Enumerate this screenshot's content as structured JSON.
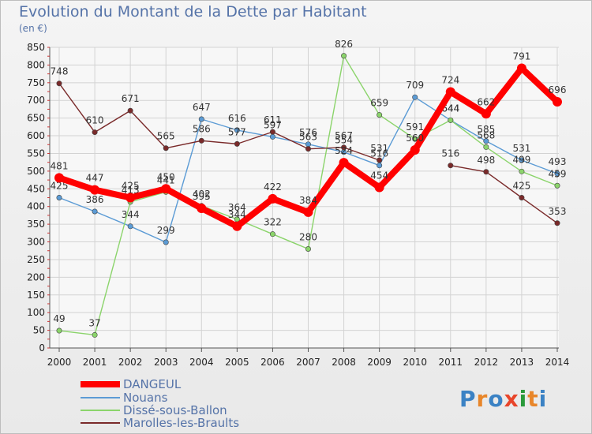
{
  "header": {
    "title": "Evolution du Montant de la Dette par Habitant",
    "unit": "(en €)"
  },
  "logo": {
    "text": "Proxiti",
    "colors": [
      "#3b82c4",
      "#e8862a",
      "#3b82c4",
      "#e8452a",
      "#2a9a3b",
      "#e8862a",
      "#3b82c4"
    ]
  },
  "chart_data": {
    "type": "line",
    "title": "Evolution du Montant de la Dette par Habitant",
    "ylabel": "(en €)",
    "xlabel": "",
    "ylim": [
      0,
      850
    ],
    "yticks": [
      0,
      50,
      100,
      150,
      200,
      250,
      300,
      350,
      400,
      450,
      500,
      550,
      600,
      650,
      700,
      750,
      800,
      850
    ],
    "x": [
      "2000",
      "2001",
      "2002",
      "2003",
      "2004",
      "2005",
      "2006",
      "2007",
      "2008",
      "2009",
      "2010",
      "2011",
      "2012",
      "2013",
      "2014"
    ],
    "grid": true,
    "legend_position": "bottom-left",
    "series": [
      {
        "name": "DANGEUL",
        "color": "#ff0000",
        "values": [
          481,
          447,
          425,
          450,
          395,
          344,
          422,
          384,
          524,
          454,
          560,
          724,
          662,
          791,
          696
        ]
      },
      {
        "name": "Nouans",
        "color": "#5b9bd5",
        "values": [
          425,
          386,
          344,
          299,
          647,
          616,
          597,
          576,
          554,
          516,
          709,
          644,
          585,
          531,
          493
        ]
      },
      {
        "name": "Dissé-sous-Ballon",
        "color": "#8bd46b",
        "values": [
          49,
          37,
          413,
          441,
          402,
          364,
          322,
          280,
          826,
          659,
          591,
          644,
          568,
          499,
          459
        ]
      },
      {
        "name": "Marolles-les-Braults",
        "color": "#7a2a2a",
        "values": [
          748,
          610,
          671,
          565,
          586,
          577,
          611,
          563,
          567,
          531,
          null,
          516,
          498,
          425,
          353
        ]
      }
    ]
  }
}
